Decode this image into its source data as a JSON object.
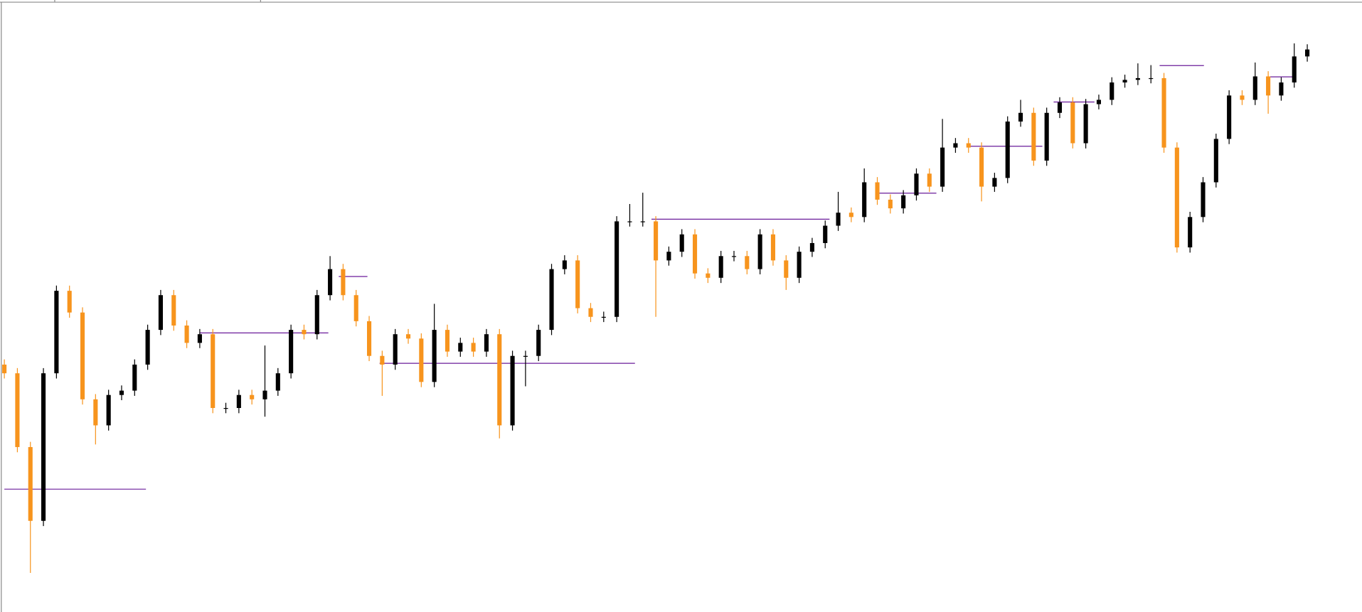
{
  "chart_data": {
    "type": "candlestick",
    "up_color": "#000000",
    "down_color": "#f7941d",
    "ylim": [
      0,
      705
    ],
    "open": [
      285,
      275,
      190,
      105,
      275,
      370,
      345,
      245,
      215,
      250,
      255,
      285,
      325,
      365,
      330,
      310,
      320,
      235,
      235,
      250,
      245,
      255,
      275,
      325,
      320,
      365,
      395,
      365,
      335,
      295,
      285,
      320,
      315,
      265,
      325,
      300,
      310,
      300,
      320,
      215,
      295,
      295,
      325,
      395,
      405,
      350,
      340,
      340,
      450,
      450,
      450,
      405,
      415,
      435,
      390,
      385,
      410,
      410,
      395,
      435,
      405,
      385,
      415,
      425,
      445,
      460,
      455,
      495,
      475,
      465,
      480,
      505,
      490,
      535,
      540,
      535,
      490,
      500,
      565,
      575,
      520,
      575,
      587,
      540,
      585,
      590,
      610,
      613,
      615,
      615,
      535,
      420,
      455,
      495,
      545,
      595,
      590,
      617,
      595,
      610,
      640
    ],
    "high": [
      291,
      281,
      196,
      281,
      376,
      376,
      351,
      251,
      256,
      261,
      291,
      331,
      371,
      371,
      336,
      326,
      326,
      241,
      256,
      256,
      307,
      281,
      331,
      331,
      371,
      410,
      401,
      371,
      341,
      301,
      326,
      326,
      321,
      355,
      331,
      316,
      316,
      326,
      326,
      301,
      301,
      331,
      401,
      411,
      411,
      356,
      346,
      456,
      470,
      483,
      456,
      421,
      441,
      441,
      396,
      416,
      416,
      416,
      441,
      441,
      411,
      421,
      431,
      451,
      484,
      466,
      511,
      501,
      481,
      486,
      511,
      511,
      568,
      546,
      546,
      541,
      506,
      571,
      590,
      581,
      581,
      593,
      593,
      591,
      596,
      616,
      619,
      632,
      630,
      621,
      541,
      461,
      501,
      551,
      601,
      601,
      633,
      623,
      616,
      655,
      654
    ],
    "low": [
      269,
      184,
      45,
      99,
      269,
      339,
      239,
      193,
      209,
      244,
      249,
      279,
      319,
      324,
      304,
      304,
      229,
      229,
      229,
      239,
      225,
      249,
      269,
      314,
      314,
      359,
      359,
      329,
      289,
      249,
      279,
      309,
      259,
      259,
      294,
      294,
      294,
      294,
      200,
      209,
      260,
      289,
      319,
      389,
      344,
      334,
      334,
      334,
      444,
      444,
      340,
      399,
      409,
      384,
      379,
      379,
      404,
      389,
      389,
      399,
      371,
      379,
      409,
      419,
      439,
      449,
      449,
      469,
      459,
      459,
      474,
      484,
      484,
      529,
      529,
      473,
      484,
      494,
      559,
      514,
      514,
      569,
      534,
      534,
      579,
      584,
      604,
      607,
      609,
      529,
      414,
      414,
      449,
      489,
      539,
      584,
      584,
      574,
      589,
      604,
      634
    ],
    "close": [
      275,
      190,
      105,
      275,
      370,
      345,
      245,
      215,
      250,
      255,
      285,
      325,
      365,
      330,
      310,
      320,
      235,
      235,
      250,
      245,
      255,
      275,
      325,
      320,
      365,
      395,
      365,
      335,
      295,
      285,
      320,
      315,
      265,
      325,
      300,
      310,
      300,
      320,
      215,
      295,
      295,
      325,
      395,
      405,
      350,
      340,
      340,
      450,
      450,
      450,
      405,
      415,
      435,
      390,
      385,
      410,
      410,
      395,
      435,
      405,
      385,
      415,
      425,
      445,
      460,
      455,
      495,
      475,
      465,
      480,
      505,
      490,
      535,
      540,
      535,
      490,
      500,
      565,
      575,
      520,
      575,
      587,
      540,
      585,
      590,
      610,
      613,
      615,
      615,
      535,
      420,
      455,
      495,
      545,
      595,
      590,
      617,
      595,
      610,
      640,
      648
    ]
  }
}
